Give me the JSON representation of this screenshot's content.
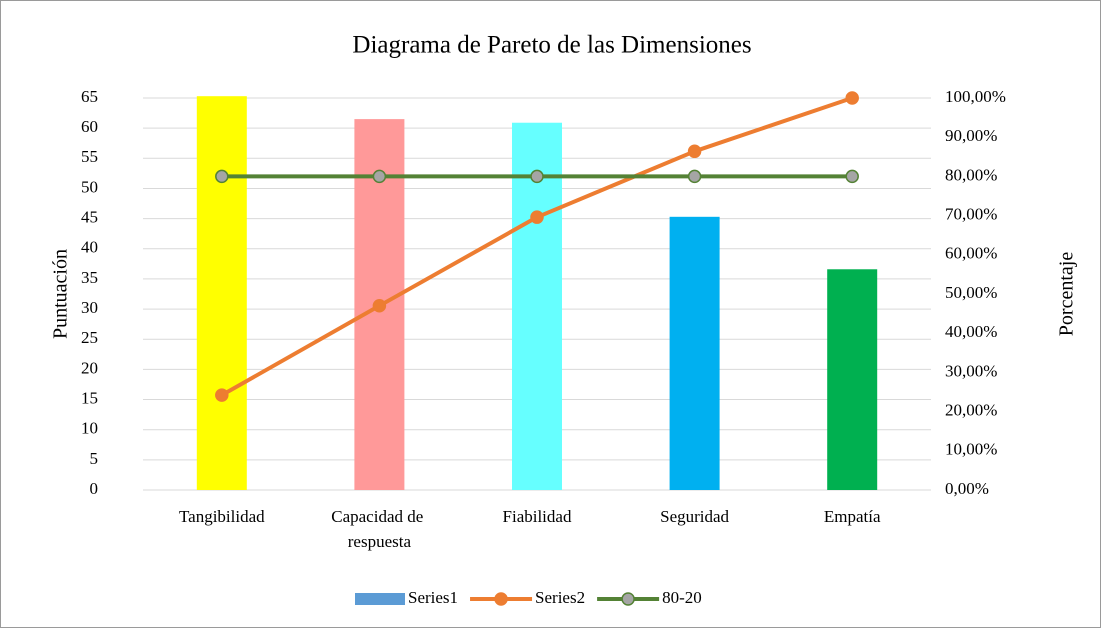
{
  "chart_data": {
    "type": "pareto",
    "title": "Diagrama de Pareto de las Dimensiones",
    "ylabel": "Puntuación",
    "y2label": "Porcentaje",
    "categories": [
      "Tangibilidad",
      "Capacidad de respuesta",
      "Fiabilidad",
      "Seguridad",
      "Empatía"
    ],
    "series": [
      {
        "name": "Series1",
        "type": "bar",
        "color": "#5b9bd5",
        "colors": [
          "#ffff00",
          "#ff9999",
          "#66ffff",
          "#00b0f0",
          "#00b050"
        ],
        "values": [
          65.3,
          61.5,
          60.9,
          45.3,
          36.6
        ]
      },
      {
        "name": "Series2",
        "type": "line",
        "axis": "y2",
        "color": "#ed7d31",
        "marker_color": "#ed7d31",
        "values": [
          24.2,
          47.0,
          69.6,
          86.4,
          100
        ]
      },
      {
        "name": "80-20",
        "type": "line",
        "axis": "y2",
        "color": "#548235",
        "marker_color": "#a5a5a5",
        "values": [
          80,
          80,
          80,
          80,
          80
        ]
      }
    ],
    "ylim": [
      0,
      65
    ],
    "yticks": [
      0,
      5,
      10,
      15,
      20,
      25,
      30,
      35,
      40,
      45,
      50,
      55,
      60,
      65
    ],
    "y2lim": [
      0,
      100
    ],
    "y2ticks": [
      {
        "value": 0,
        "label": "0,00%"
      },
      {
        "value": 10,
        "label": "10,00%"
      },
      {
        "value": 20,
        "label": "20,00%"
      },
      {
        "value": 30,
        "label": "30,00%"
      },
      {
        "value": 40,
        "label": "40,00%"
      },
      {
        "value": 50,
        "label": "50,00%"
      },
      {
        "value": 60,
        "label": "60,00%"
      },
      {
        "value": 70,
        "label": "70,00%"
      },
      {
        "value": 80,
        "label": "80,00%"
      },
      {
        "value": 90,
        "label": "90,00%"
      },
      {
        "value": 100,
        "label": "100,00%"
      }
    ],
    "grid": true,
    "legend": "bottom"
  }
}
